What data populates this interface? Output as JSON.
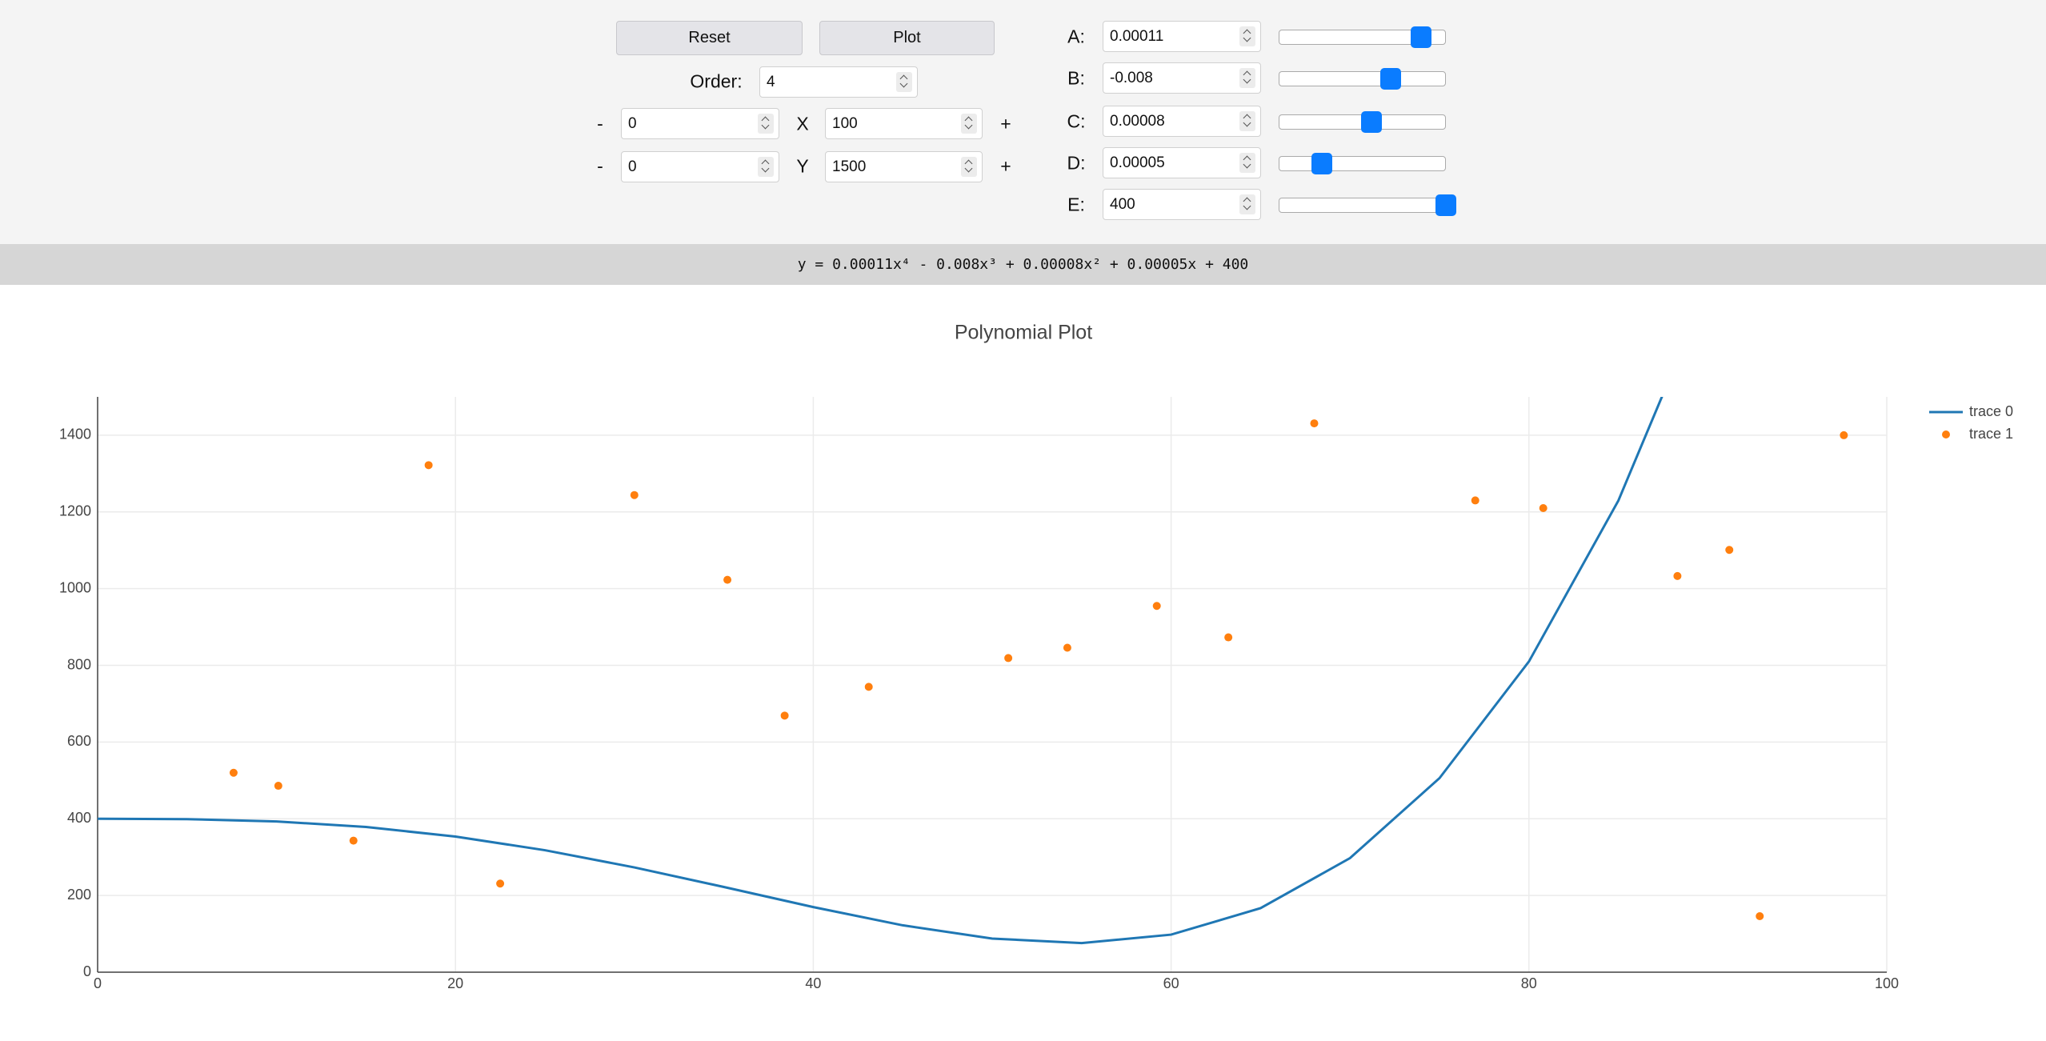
{
  "controls": {
    "reset": "Reset",
    "plot": "Plot",
    "order": {
      "label": "Order:",
      "value": "4"
    },
    "x_range": {
      "minus": "-",
      "min": "0",
      "label": "X",
      "max": "100",
      "plus": "+"
    },
    "y_range": {
      "minus": "-",
      "min": "0",
      "label": "Y",
      "max": "1500",
      "plus": "+"
    },
    "coefficients": [
      {
        "label": "A:",
        "value": "0.00011"
      },
      {
        "label": "B:",
        "value": "-0.008"
      },
      {
        "label": "C:",
        "value": "0.00008"
      },
      {
        "label": "D:",
        "value": "0.00005"
      },
      {
        "label": "E:",
        "value": "400"
      }
    ]
  },
  "equation": "y = 0.00011x⁴ - 0.008x³ + 0.00008x² + 0.00005x + 400",
  "chart_data": {
    "type": "line",
    "title": "Polynomial Plot",
    "series": [
      {
        "name": "trace 0",
        "type": "line",
        "color": "#1f77b4",
        "x": [
          0,
          5,
          10,
          15,
          20,
          25,
          30,
          35,
          40,
          45,
          50,
          55,
          60,
          65,
          70,
          75,
          80,
          85,
          90
        ],
        "values": [
          400,
          399.07,
          393.11,
          378.59,
          353.63,
          318.02,
          273.17,
          222.17,
          169.73,
          122.23,
          87.7,
          75.81,
          97.89,
          166.91,
          297.49,
          505.92,
          810.12,
          1229.65,
          1785.75
        ]
      },
      {
        "name": "trace 1",
        "type": "scatter",
        "color": "#ff7f0e",
        "x": [
          7.6,
          10.1,
          14.3,
          18.5,
          22.5,
          30.0,
          35.2,
          38.4,
          43.1,
          50.9,
          54.2,
          59.2,
          63.2,
          68.0,
          77.0,
          80.8,
          88.3,
          91.2,
          92.9,
          97.6
        ],
        "values": [
          520,
          486,
          343,
          1322,
          231,
          1244,
          1023,
          669,
          744,
          819,
          846,
          955,
          873,
          1431,
          1230,
          1210,
          1033,
          1101,
          146,
          1400
        ]
      }
    ],
    "xlim": [
      0,
      100
    ],
    "xticks": [
      0,
      20,
      40,
      60,
      80,
      100
    ],
    "ylim": [
      0,
      1500
    ],
    "yticks": [
      0,
      200,
      400,
      600,
      800,
      1000,
      1200,
      1400
    ],
    "grid": true,
    "legend": "top-right"
  }
}
